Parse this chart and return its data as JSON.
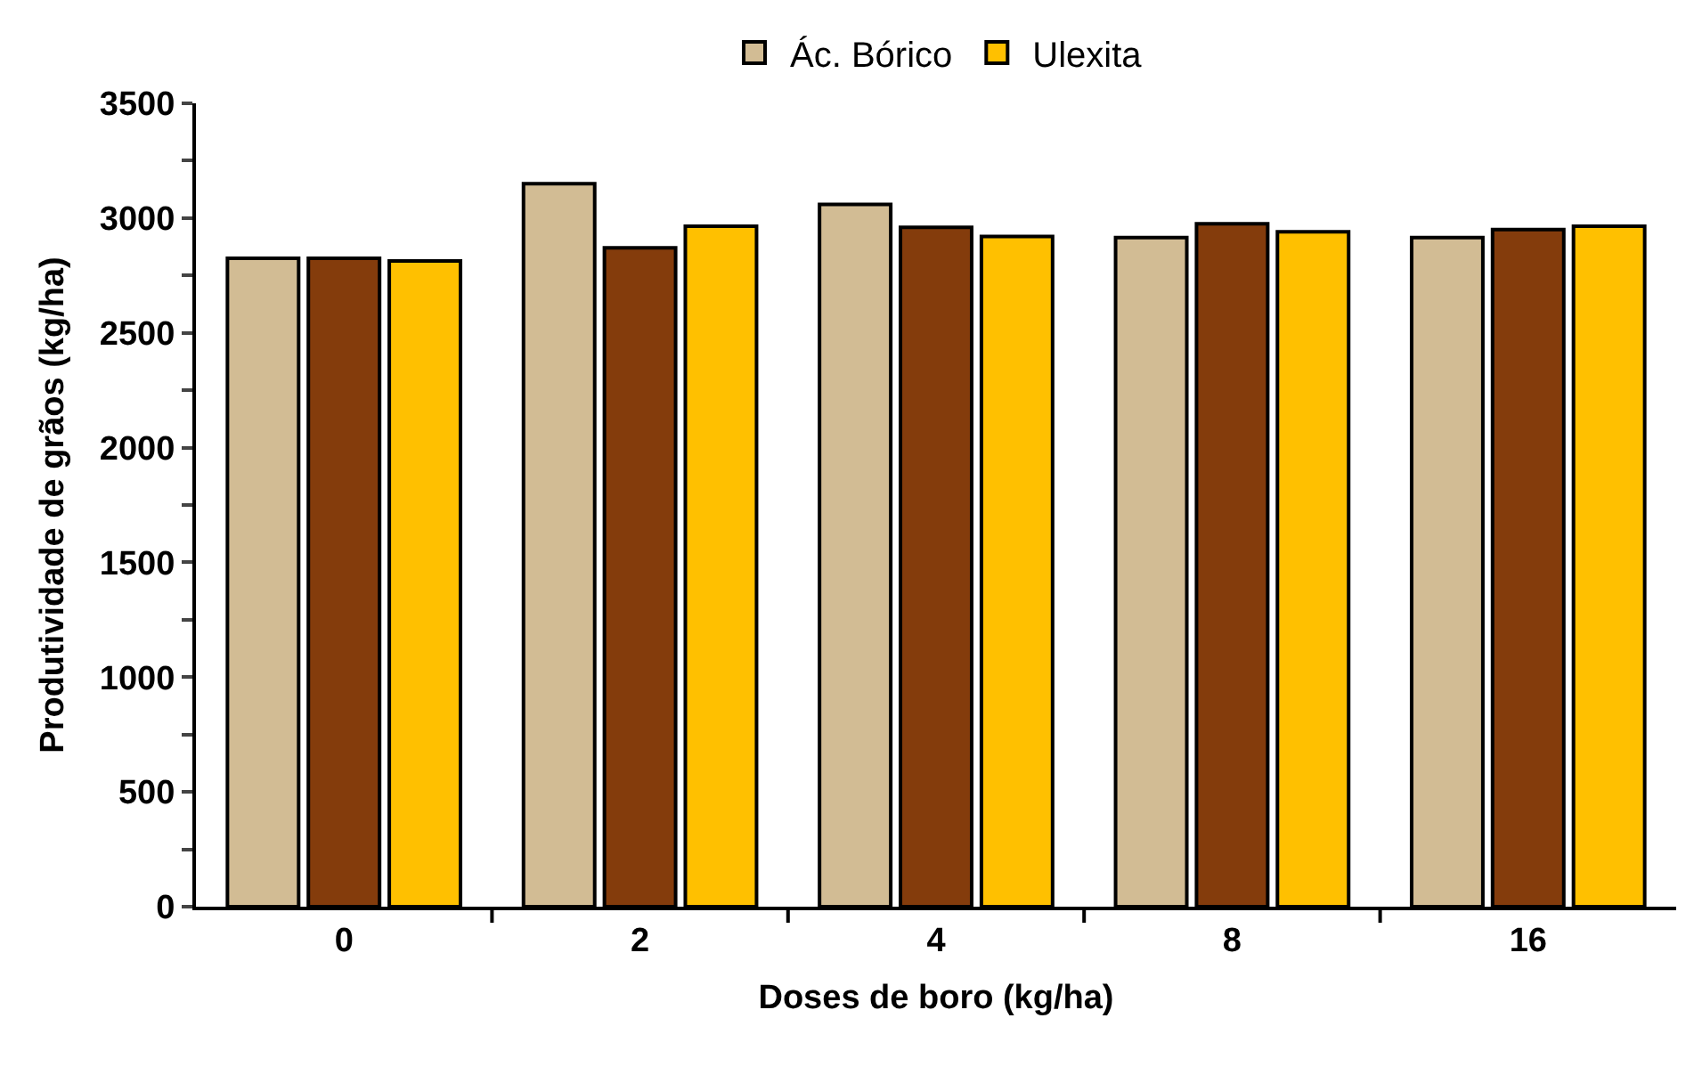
{
  "chart_data": {
    "type": "bar",
    "xlabel": "Doses de boro (kg/ha)",
    "ylabel": "Produtividade de grãos (kg/ha)",
    "categories": [
      "0",
      "2",
      "4",
      "8",
      "16"
    ],
    "series": [
      {
        "name": "Ác. Bórico",
        "color": "#d2bc94",
        "values": [
          2825,
          3150,
          3060,
          2915,
          2915
        ]
      },
      {
        "color": "#843c0c",
        "values": [
          2825,
          2870,
          2960,
          2975,
          2950
        ]
      },
      {
        "name": "Ulexita",
        "color": "#ffc000",
        "values": [
          2813,
          2965,
          2920,
          2940,
          2965
        ]
      }
    ],
    "ylim": [
      0,
      3500
    ],
    "yticks": [
      0,
      {
        "value": 250,
        "label": null
      },
      500,
      {
        "value": 750,
        "label": null
      },
      1000,
      {
        "value": 1250,
        "label": null
      },
      1500,
      {
        "value": 1750,
        "label": null
      },
      2000,
      {
        "value": 2250,
        "label": null
      },
      2500,
      {
        "value": 2750,
        "label": null
      },
      3000,
      {
        "value": 3250,
        "label": null
      },
      3500
    ],
    "legend": "top"
  }
}
